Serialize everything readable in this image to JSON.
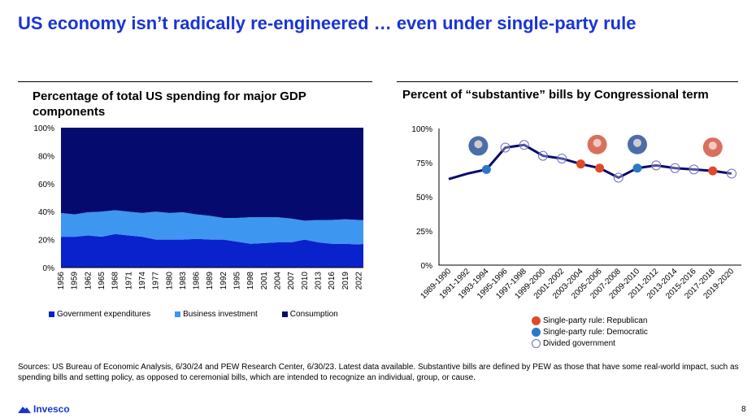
{
  "title": "US economy isn’t radically re-engineered … even under single-party rule",
  "sources": "Sources: US Bureau of Economic Analysis, 6/30/24 and PEW Research Center, 6/30/23. Latest data available. Substantive bills are defined by PEW as those that have some real-world impact, such as spending bills and setting policy, as opposed to ceremonial bills, which are intended to recognize an individual, group, or cause.",
  "logo": "Invesco",
  "page_number": "8",
  "chart_data": [
    {
      "type": "area",
      "stacked": true,
      "title": "Percentage of total US spending for major GDP components",
      "ylim": [
        0,
        100
      ],
      "yticks": [
        "0%",
        "20%",
        "40%",
        "60%",
        "80%",
        "100%"
      ],
      "xticks": [
        "1956",
        "1959",
        "1962",
        "1965",
        "1968",
        "1971",
        "1974",
        "1977",
        "1980",
        "1983",
        "1986",
        "1989",
        "1992",
        "1995",
        "1998",
        "2001",
        "2004",
        "2007",
        "2010",
        "2013",
        "2016",
        "2019",
        "2022"
      ],
      "x": [
        1956,
        1959,
        1962,
        1965,
        1968,
        1971,
        1974,
        1977,
        1980,
        1983,
        1986,
        1989,
        1992,
        1995,
        1998,
        2001,
        2004,
        2007,
        2010,
        2013,
        2016,
        2019,
        2022,
        2023
      ],
      "series": [
        {
          "name": "Government expenditures",
          "color": "#0a22cc",
          "values": [
            22,
            22,
            23,
            22,
            24,
            23,
            22,
            20,
            20,
            20,
            20.5,
            20,
            20,
            18.5,
            17,
            17.5,
            18,
            18,
            20,
            18,
            17,
            17,
            16.5,
            17
          ]
        },
        {
          "name": "Business investment",
          "color": "#3d96f0",
          "values": [
            17,
            16,
            16.5,
            18,
            17,
            17,
            17,
            20,
            19,
            19.5,
            17.5,
            17,
            15.5,
            17,
            19,
            18.5,
            18,
            17,
            13.5,
            16,
            17,
            17.5,
            17.5,
            17
          ]
        },
        {
          "name": "Consumption",
          "color": "#050a6e",
          "values": [
            61,
            62,
            60.5,
            60,
            59,
            60,
            61,
            60,
            61,
            60.5,
            62,
            63,
            64.5,
            64.5,
            64,
            64,
            64,
            65,
            66.5,
            66,
            66,
            65.5,
            66,
            66
          ]
        }
      ],
      "legend": "bottom"
    },
    {
      "type": "line",
      "title": "Percent of “substantive” bills by Congressional term",
      "ylim": [
        0,
        100
      ],
      "yticks": [
        "0%",
        "25%",
        "50%",
        "75%",
        "100%"
      ],
      "categories": [
        "1989-1990",
        "1991-1992",
        "1993-1994",
        "1995-1996",
        "1997-1998",
        "1999-2000",
        "2001-2002",
        "2003-2004",
        "2005-2006",
        "2007-2008",
        "2009-2010",
        "2011-2012",
        "2013-2014",
        "2015-2016",
        "2017-2018",
        "2019-2020"
      ],
      "values": [
        63,
        67,
        70,
        86,
        88,
        80,
        78,
        74,
        71,
        64,
        71,
        73,
        71,
        70,
        69,
        67
      ],
      "rule": [
        "none",
        "none",
        "democratic",
        "divided",
        "divided",
        "divided",
        "divided",
        "republican",
        "republican",
        "divided",
        "democratic",
        "divided",
        "divided",
        "divided",
        "republican",
        "divided"
      ],
      "line_color": "#050a6e",
      "colors": {
        "republican": "#e04a2a",
        "democratic": "#2a78c8",
        "divided": "#ffffff"
      },
      "legend": [
        "Single-party rule: Republican",
        "Single-party rule: Democratic",
        "Divided government"
      ],
      "portraits": [
        {
          "term": "1993-1994",
          "party": "democratic"
        },
        {
          "term": "2005-2006",
          "party": "republican"
        },
        {
          "term": "2009-2010",
          "party": "democratic"
        },
        {
          "term": "2017-2018",
          "party": "republican"
        }
      ]
    }
  ]
}
